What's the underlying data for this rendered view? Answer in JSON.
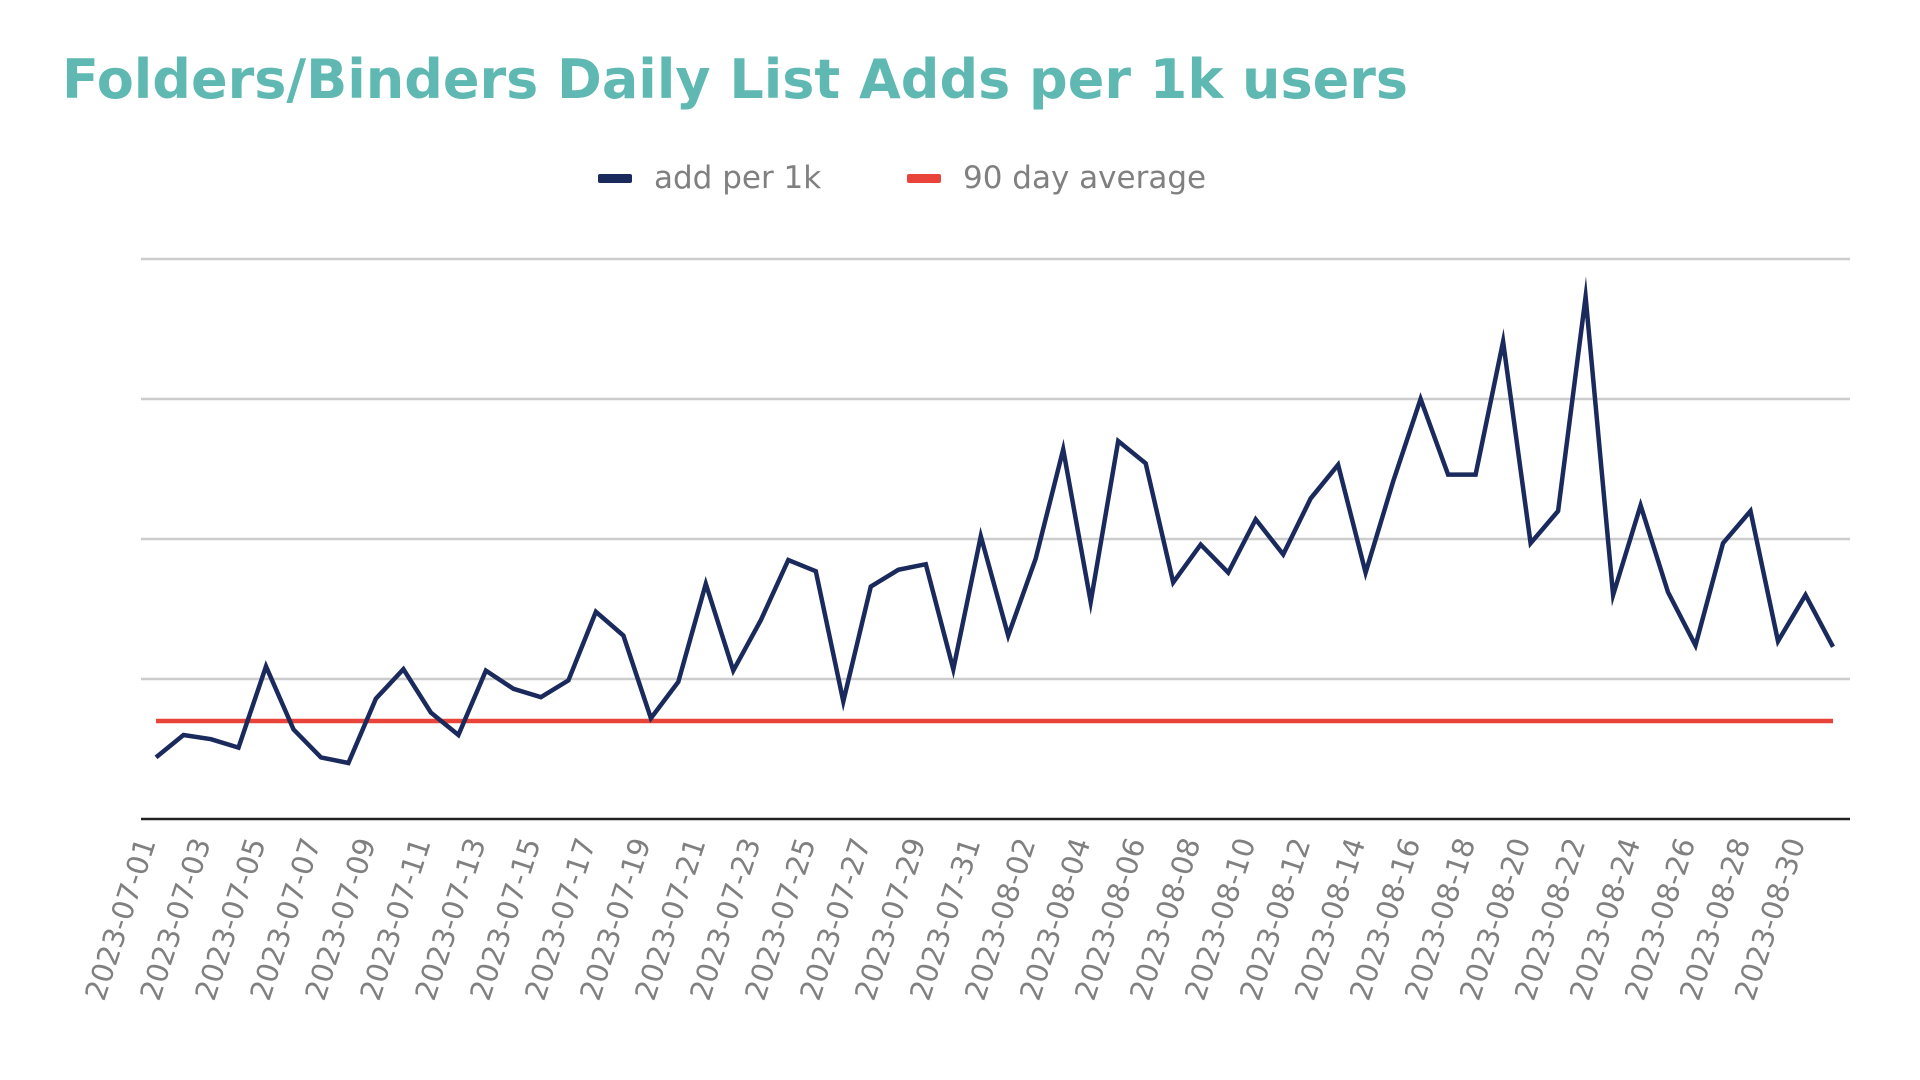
{
  "chart_data": {
    "type": "line",
    "title": "Folders/Binders Daily List Adds per 1k users",
    "xlabel": "",
    "ylabel": "",
    "ylim": [
      0,
      4
    ],
    "grid": true,
    "legend_placement": "top-center",
    "x": [
      "2023-07-01",
      "2023-07-02",
      "2023-07-03",
      "2023-07-04",
      "2023-07-05",
      "2023-07-06",
      "2023-07-07",
      "2023-07-08",
      "2023-07-09",
      "2023-07-10",
      "2023-07-11",
      "2023-07-12",
      "2023-07-13",
      "2023-07-14",
      "2023-07-15",
      "2023-07-16",
      "2023-07-17",
      "2023-07-18",
      "2023-07-19",
      "2023-07-20",
      "2023-07-21",
      "2023-07-22",
      "2023-07-23",
      "2023-07-24",
      "2023-07-25",
      "2023-07-26",
      "2023-07-27",
      "2023-07-28",
      "2023-07-29",
      "2023-07-30",
      "2023-07-31",
      "2023-08-01",
      "2023-08-02",
      "2023-08-03",
      "2023-08-04",
      "2023-08-05",
      "2023-08-06",
      "2023-08-07",
      "2023-08-08",
      "2023-08-09",
      "2023-08-10",
      "2023-08-11",
      "2023-08-12",
      "2023-08-13",
      "2023-08-14",
      "2023-08-15",
      "2023-08-16",
      "2023-08-17",
      "2023-08-18",
      "2023-08-19",
      "2023-08-20",
      "2023-08-21",
      "2023-08-22",
      "2023-08-23",
      "2023-08-24",
      "2023-08-25",
      "2023-08-26",
      "2023-08-27",
      "2023-08-28",
      "2023-08-29",
      "2023-08-30",
      "2023-08-31"
    ],
    "tick_labels": [
      "2023-07-01",
      "2023-07-03",
      "2023-07-05",
      "2023-07-07",
      "2023-07-09",
      "2023-07-11",
      "2023-07-13",
      "2023-07-15",
      "2023-07-17",
      "2023-07-19",
      "2023-07-21",
      "2023-07-23",
      "2023-07-25",
      "2023-07-27",
      "2023-07-29",
      "2023-07-31",
      "2023-08-02",
      "2023-08-04",
      "2023-08-06",
      "2023-08-08",
      "2023-08-10",
      "2023-08-12",
      "2023-08-14",
      "2023-08-16",
      "2023-08-18",
      "2023-08-20",
      "2023-08-22",
      "2023-08-24",
      "2023-08-26",
      "2023-08-28",
      "2023-08-30"
    ],
    "series": [
      {
        "name": "add per 1k",
        "color": "#1b2a5c",
        "values": [
          0.44,
          0.6,
          0.57,
          0.51,
          1.09,
          0.64,
          0.44,
          0.4,
          0.86,
          1.07,
          0.76,
          0.6,
          1.06,
          0.93,
          0.87,
          0.99,
          1.48,
          1.31,
          0.72,
          0.98,
          1.68,
          1.06,
          1.42,
          1.85,
          1.77,
          0.84,
          1.66,
          1.78,
          1.82,
          1.07,
          2.02,
          1.31,
          1.86,
          2.64,
          1.55,
          2.7,
          2.54,
          1.69,
          1.96,
          1.76,
          2.14,
          1.89,
          2.29,
          2.53,
          1.76,
          2.41,
          3.0,
          2.46,
          2.46,
          3.41,
          1.97,
          2.2,
          3.73,
          1.6,
          2.24,
          1.62,
          1.24,
          1.97,
          2.2,
          1.27,
          1.6,
          1.23
        ]
      },
      {
        "name": "90 day average",
        "color": "#e8443a",
        "values": [
          0.7,
          0.7,
          0.7,
          0.7,
          0.7,
          0.7,
          0.7,
          0.7,
          0.7,
          0.7,
          0.7,
          0.7,
          0.7,
          0.7,
          0.7,
          0.7,
          0.7,
          0.7,
          0.7,
          0.7,
          0.7,
          0.7,
          0.7,
          0.7,
          0.7,
          0.7,
          0.7,
          0.7,
          0.7,
          0.7,
          0.7,
          0.7,
          0.7,
          0.7,
          0.7,
          0.7,
          0.7,
          0.7,
          0.7,
          0.7,
          0.7,
          0.7,
          0.7,
          0.7,
          0.7,
          0.7,
          0.7,
          0.7,
          0.7,
          0.7,
          0.7,
          0.7,
          0.7,
          0.7,
          0.7,
          0.7,
          0.7,
          0.7,
          0.7,
          0.7,
          0.7,
          0.7
        ]
      }
    ]
  },
  "colors": {
    "title": "#5fb8b2",
    "gridline": "#cccccc",
    "axis": "#222222",
    "tick_label": "#808080",
    "legend_label": "#808080"
  }
}
